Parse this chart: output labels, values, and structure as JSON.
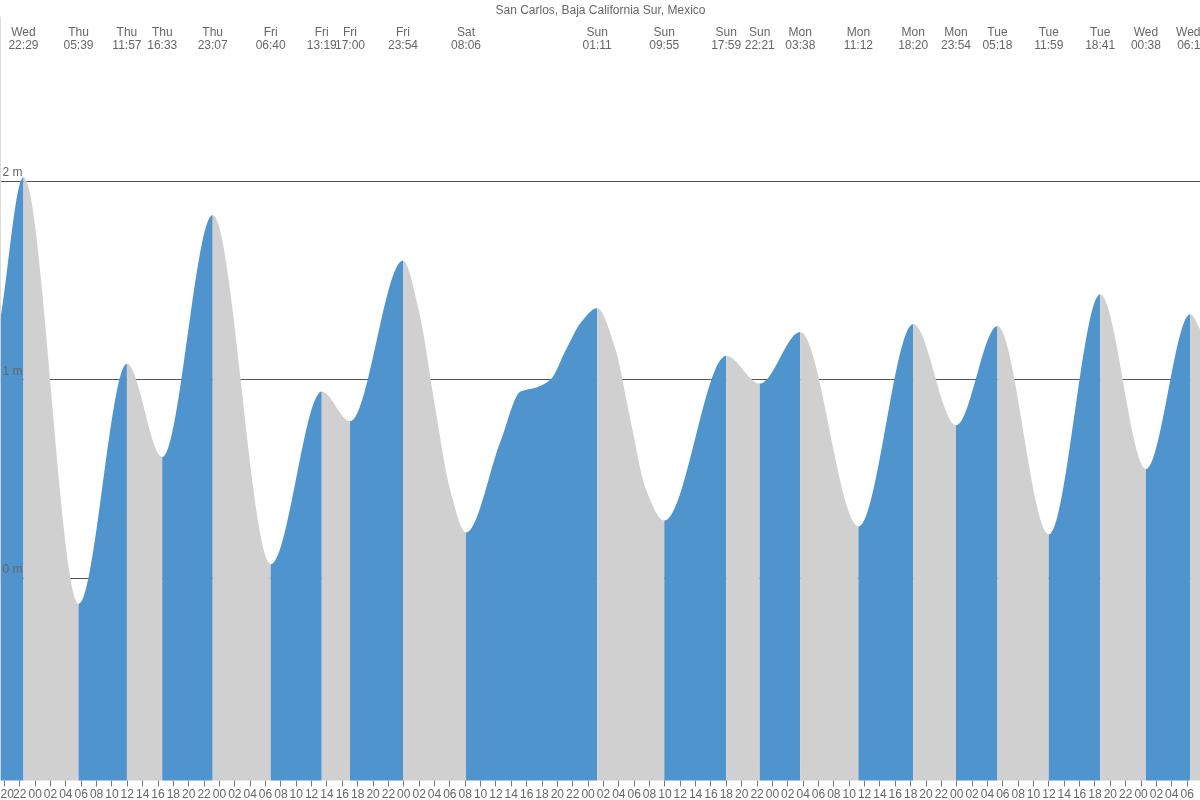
{
  "chart_data": {
    "type": "area",
    "title": "San Carlos, Baja California Sur, Mexico",
    "xlim": [
      19.49,
      175.74
    ],
    "ylim": [
      -1.02,
      2.83
    ],
    "yticks": [
      {
        "value": 0,
        "label": "0 m"
      },
      {
        "value": 1,
        "label": "1 m"
      },
      {
        "value": 2,
        "label": "2 m"
      }
    ],
    "xticks": [
      {
        "value": 20,
        "label": "20"
      },
      {
        "value": 22,
        "label": "22"
      },
      {
        "value": 24,
        "label": "00"
      },
      {
        "value": 26,
        "label": "02"
      },
      {
        "value": 28,
        "label": "04"
      },
      {
        "value": 30,
        "label": "06"
      },
      {
        "value": 32,
        "label": "08"
      },
      {
        "value": 34,
        "label": "10"
      },
      {
        "value": 36,
        "label": "12"
      },
      {
        "value": 38,
        "label": "14"
      },
      {
        "value": 40,
        "label": "16"
      },
      {
        "value": 42,
        "label": "18"
      },
      {
        "value": 44,
        "label": "20"
      },
      {
        "value": 46,
        "label": "22"
      },
      {
        "value": 48,
        "label": "00"
      },
      {
        "value": 50,
        "label": "02"
      },
      {
        "value": 52,
        "label": "04"
      },
      {
        "value": 54,
        "label": "06"
      },
      {
        "value": 56,
        "label": "08"
      },
      {
        "value": 58,
        "label": "10"
      },
      {
        "value": 60,
        "label": "12"
      },
      {
        "value": 62,
        "label": "14"
      },
      {
        "value": 64,
        "label": "16"
      },
      {
        "value": 66,
        "label": "18"
      },
      {
        "value": 68,
        "label": "20"
      },
      {
        "value": 70,
        "label": "22"
      },
      {
        "value": 72,
        "label": "00"
      },
      {
        "value": 74,
        "label": "02"
      },
      {
        "value": 76,
        "label": "04"
      },
      {
        "value": 78,
        "label": "06"
      },
      {
        "value": 80,
        "label": "08"
      },
      {
        "value": 82,
        "label": "10"
      },
      {
        "value": 84,
        "label": "12"
      },
      {
        "value": 86,
        "label": "14"
      },
      {
        "value": 88,
        "label": "16"
      },
      {
        "value": 90,
        "label": "18"
      },
      {
        "value": 92,
        "label": "20"
      },
      {
        "value": 94,
        "label": "22"
      },
      {
        "value": 96,
        "label": "00"
      },
      {
        "value": 98,
        "label": "02"
      },
      {
        "value": 100,
        "label": "04"
      },
      {
        "value": 102,
        "label": "06"
      },
      {
        "value": 104,
        "label": "08"
      },
      {
        "value": 106,
        "label": "10"
      },
      {
        "value": 108,
        "label": "12"
      },
      {
        "value": 110,
        "label": "14"
      },
      {
        "value": 112,
        "label": "16"
      },
      {
        "value": 114,
        "label": "18"
      },
      {
        "value": 116,
        "label": "20"
      },
      {
        "value": 118,
        "label": "22"
      },
      {
        "value": 120,
        "label": "00"
      },
      {
        "value": 122,
        "label": "02"
      },
      {
        "value": 124,
        "label": "04"
      },
      {
        "value": 126,
        "label": "06"
      },
      {
        "value": 128,
        "label": "08"
      },
      {
        "value": 130,
        "label": "10"
      },
      {
        "value": 132,
        "label": "12"
      },
      {
        "value": 134,
        "label": "14"
      },
      {
        "value": 136,
        "label": "16"
      },
      {
        "value": 138,
        "label": "18"
      },
      {
        "value": 140,
        "label": "20"
      },
      {
        "value": 142,
        "label": "22"
      },
      {
        "value": 144,
        "label": "00"
      },
      {
        "value": 146,
        "label": "02"
      },
      {
        "value": 148,
        "label": "04"
      },
      {
        "value": 150,
        "label": "06"
      },
      {
        "value": 152,
        "label": "08"
      },
      {
        "value": 154,
        "label": "10"
      },
      {
        "value": 156,
        "label": "12"
      },
      {
        "value": 158,
        "label": "14"
      },
      {
        "value": 160,
        "label": "16"
      },
      {
        "value": 162,
        "label": "18"
      },
      {
        "value": 164,
        "label": "20"
      },
      {
        "value": 166,
        "label": "22"
      },
      {
        "value": 168,
        "label": "00"
      },
      {
        "value": 170,
        "label": "02"
      },
      {
        "value": 172,
        "label": "04"
      },
      {
        "value": 174,
        "label": "06"
      }
    ],
    "grid": "y",
    "series": [
      {
        "color": "#4f94cd",
        "x": [
          19.49,
          22.48
        ],
        "values": [
          1.31,
          2.02
        ]
      },
      {
        "color": "#d0d0d0",
        "x": [
          22.48,
          29.65
        ],
        "values": [
          2.02,
          -0.13
        ]
      },
      {
        "color": "#4f94cd",
        "x": [
          29.65,
          35.95
        ],
        "values": [
          -0.13,
          1.08
        ]
      },
      {
        "color": "#d0d0d0",
        "x": [
          35.95,
          40.55
        ],
        "values": [
          1.08,
          0.61
        ]
      },
      {
        "color": "#4f94cd",
        "x": [
          40.55,
          47.12
        ],
        "values": [
          0.61,
          1.83
        ]
      },
      {
        "color": "#d0d0d0",
        "x": [
          47.12,
          54.67
        ],
        "values": [
          1.83,
          0.07
        ]
      },
      {
        "color": "#4f94cd",
        "x": [
          54.67,
          61.32
        ],
        "values": [
          0.07,
          0.94
        ]
      },
      {
        "color": "#d0d0d0",
        "x": [
          61.32,
          65.0
        ],
        "values": [
          0.94,
          0.79
        ]
      },
      {
        "color": "#4f94cd",
        "x": [
          65.0,
          71.9
        ],
        "values": [
          0.79,
          1.6
        ]
      },
      {
        "color": "#d0d0d0",
        "x": [
          71.9,
          74.0,
          76.0,
          78.0,
          80.1
        ],
        "values": [
          1.6,
          1.34,
          0.88,
          0.45,
          0.23
        ]
      },
      {
        "color": "#4f94cd",
        "x": [
          80.1,
          84.6,
          87.2,
          89.2,
          91.1,
          93.1,
          95.1,
          97.18
        ],
        "values": [
          0.23,
          0.69,
          0.94,
          0.96,
          1.0,
          1.15,
          1.29,
          1.36
        ]
      },
      {
        "color": "#d0d0d0",
        "x": [
          97.18,
          99.5,
          101.5,
          103.5,
          105.92
        ],
        "values": [
          1.36,
          1.16,
          0.8,
          0.45,
          0.29
        ]
      },
      {
        "color": "#4f94cd",
        "x": [
          105.92,
          113.98
        ],
        "values": [
          0.29,
          1.12
        ]
      },
      {
        "color": "#d0d0d0",
        "x": [
          113.98,
          118.35
        ],
        "values": [
          1.12,
          0.98
        ]
      },
      {
        "color": "#4f94cd",
        "x": [
          118.35,
          123.63
        ],
        "values": [
          0.98,
          1.24
        ]
      },
      {
        "color": "#d0d0d0",
        "x": [
          123.63,
          131.2
        ],
        "values": [
          1.24,
          0.26
        ]
      },
      {
        "color": "#4f94cd",
        "x": [
          131.2,
          138.33
        ],
        "values": [
          0.26,
          1.28
        ]
      },
      {
        "color": "#d0d0d0",
        "x": [
          138.33,
          143.9
        ],
        "values": [
          1.28,
          0.77
        ]
      },
      {
        "color": "#4f94cd",
        "x": [
          143.9,
          149.3
        ],
        "values": [
          0.77,
          1.27
        ]
      },
      {
        "color": "#d0d0d0",
        "x": [
          149.3,
          155.98
        ],
        "values": [
          1.27,
          0.22
        ]
      },
      {
        "color": "#4f94cd",
        "x": [
          155.98,
          162.68
        ],
        "values": [
          0.22,
          1.43
        ]
      },
      {
        "color": "#d0d0d0",
        "x": [
          162.68,
          168.63
        ],
        "values": [
          1.43,
          0.55
        ]
      },
      {
        "color": "#4f94cd",
        "x": [
          168.63,
          174.4
        ],
        "values": [
          0.55,
          1.33
        ]
      },
      {
        "color": "#d0d0d0",
        "x": [
          174.4,
          175.74
        ],
        "values": [
          1.33,
          1.25
        ]
      }
    ],
    "annotations": [
      "Wed 22:29",
      "Thu 05:39",
      "Thu 11:57",
      "Thu 16:33",
      "Thu 23:07",
      "Fri 06:40",
      "Fri 13:19",
      "Fri 17:00",
      "Fri 23:54",
      "Sat 08:06",
      "Sun 01:11",
      "Sun 09:55",
      "Sun 17:59",
      "Sun 22:21",
      "Mon 03:38",
      "Mon 11:12",
      "Mon 18:20",
      "Mon 23:54",
      "Tue 05:18",
      "Tue 11:59",
      "Tue 18:41",
      "Wed 00:38",
      "Wed 06:1"
    ]
  }
}
